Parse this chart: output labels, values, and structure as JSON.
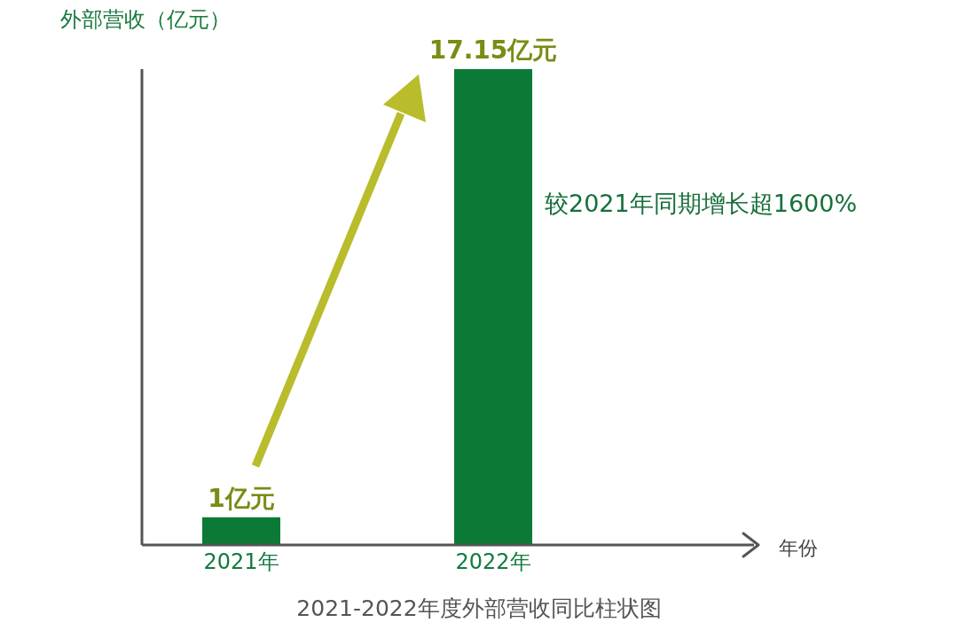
{
  "chart_data": {
    "type": "bar",
    "title": "2021-2022年度外部营收同比柱状图",
    "xlabel": "年份",
    "ylabel": "外部营收（亿元）",
    "categories": [
      "2021年",
      "2022年"
    ],
    "values": [
      1,
      17.15
    ],
    "color": "#0b7a36",
    "value_labels": [
      "1亿元",
      "17.15亿元"
    ],
    "annotations": [
      "较2021年同期增长超1600%"
    ],
    "tick_labels": "x"
  }
}
